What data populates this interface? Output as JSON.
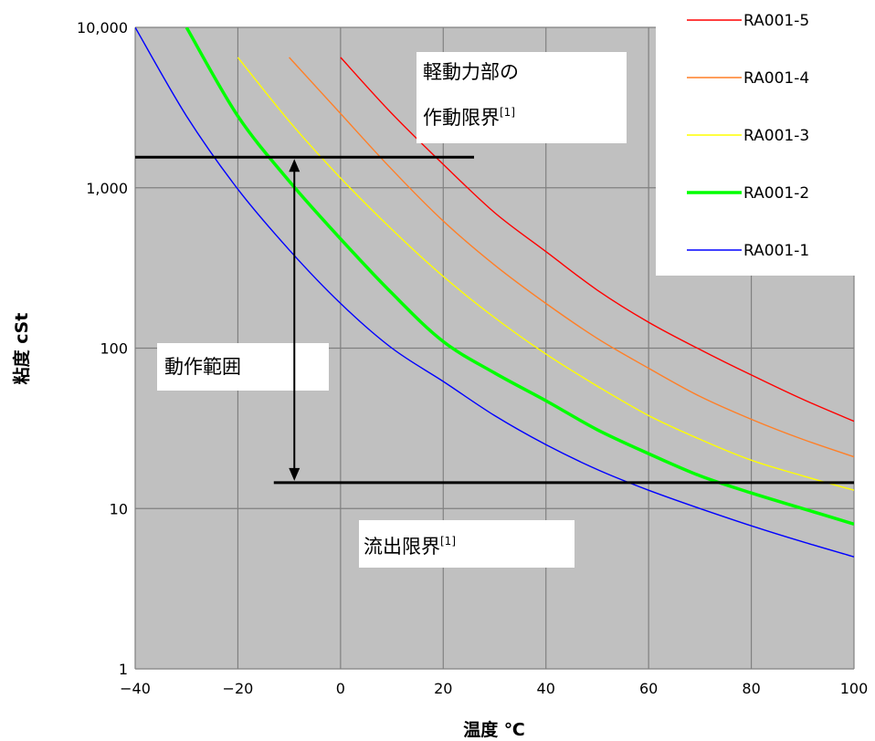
{
  "chart_data": {
    "type": "line",
    "title": "",
    "xlabel": "温度 ℃",
    "ylabel": "粘度 cSt",
    "xlim": [
      -40,
      100
    ],
    "ylim": [
      1,
      10000
    ],
    "yscale": "log",
    "x_ticks": [
      -40,
      -20,
      0,
      20,
      40,
      60,
      80,
      100
    ],
    "x_tick_labels": [
      "−40",
      "−20",
      "0",
      "20",
      "40",
      "60",
      "80",
      "100"
    ],
    "y_ticks": [
      1,
      10,
      100,
      1000,
      10000
    ],
    "y_tick_labels": [
      "1",
      "10",
      "100",
      "1,000",
      "10,000"
    ],
    "grid": true,
    "legend_position": "top-right",
    "series": [
      {
        "name": "RA001-5",
        "color": "#ff0000",
        "points": [
          [
            0,
            6500
          ],
          [
            10,
            2900
          ],
          [
            20,
            1400
          ],
          [
            30,
            700
          ],
          [
            40,
            400
          ],
          [
            50,
            230
          ],
          [
            60,
            145
          ],
          [
            70,
            98
          ],
          [
            80,
            68
          ],
          [
            90,
            48
          ],
          [
            100,
            35
          ]
        ]
      },
      {
        "name": "RA001-4",
        "color": "#ff7f27",
        "points": [
          [
            -10,
            6500
          ],
          [
            0,
            2900
          ],
          [
            10,
            1300
          ],
          [
            20,
            620
          ],
          [
            30,
            330
          ],
          [
            40,
            190
          ],
          [
            50,
            115
          ],
          [
            60,
            75
          ],
          [
            70,
            50
          ],
          [
            80,
            36
          ],
          [
            90,
            27
          ],
          [
            100,
            21
          ]
        ]
      },
      {
        "name": "RA001-3",
        "color": "#ffff00",
        "points": [
          [
            -20,
            6500
          ],
          [
            -10,
            2600
          ],
          [
            0,
            1150
          ],
          [
            10,
            550
          ],
          [
            20,
            280
          ],
          [
            30,
            155
          ],
          [
            40,
            92
          ],
          [
            50,
            58
          ],
          [
            60,
            38
          ],
          [
            70,
            27
          ],
          [
            80,
            20
          ],
          [
            90,
            16
          ],
          [
            100,
            13
          ]
        ]
      },
      {
        "name": "RA001-2",
        "color": "#00ff00",
        "points": [
          [
            -30,
            10000
          ],
          [
            -20,
            2800
          ],
          [
            -10,
            1100
          ],
          [
            0,
            480
          ],
          [
            10,
            220
          ],
          [
            20,
            110
          ],
          [
            30,
            70
          ],
          [
            40,
            47
          ],
          [
            50,
            31
          ],
          [
            60,
            22
          ],
          [
            70,
            16
          ],
          [
            80,
            12.5
          ],
          [
            90,
            10
          ],
          [
            100,
            8
          ]
        ]
      },
      {
        "name": "RA001-1",
        "color": "#0000ff",
        "points": [
          [
            -40,
            10000
          ],
          [
            -30,
            2800
          ],
          [
            -20,
            980
          ],
          [
            -10,
            410
          ],
          [
            0,
            190
          ],
          [
            10,
            100
          ],
          [
            20,
            62
          ],
          [
            30,
            38
          ],
          [
            40,
            25
          ],
          [
            50,
            17.5
          ],
          [
            60,
            13
          ],
          [
            70,
            10
          ],
          [
            80,
            7.8
          ],
          [
            90,
            6.2
          ],
          [
            100,
            5
          ]
        ]
      }
    ],
    "reference_lines": [
      {
        "y": 1550,
        "x_from": -40,
        "x_to": 26
      },
      {
        "y": 14.5,
        "x_from": -13,
        "x_to": 100
      }
    ],
    "range_arrow": {
      "x": -9,
      "y_from": 1550,
      "y_to": 14.5
    },
    "annotations": {
      "upper_line1": "軽動力部の",
      "upper_line2": "作動限界",
      "upper_sup": "[1]",
      "middle": "動作範囲",
      "lower": "流出限界",
      "lower_sup": "[1]"
    }
  }
}
